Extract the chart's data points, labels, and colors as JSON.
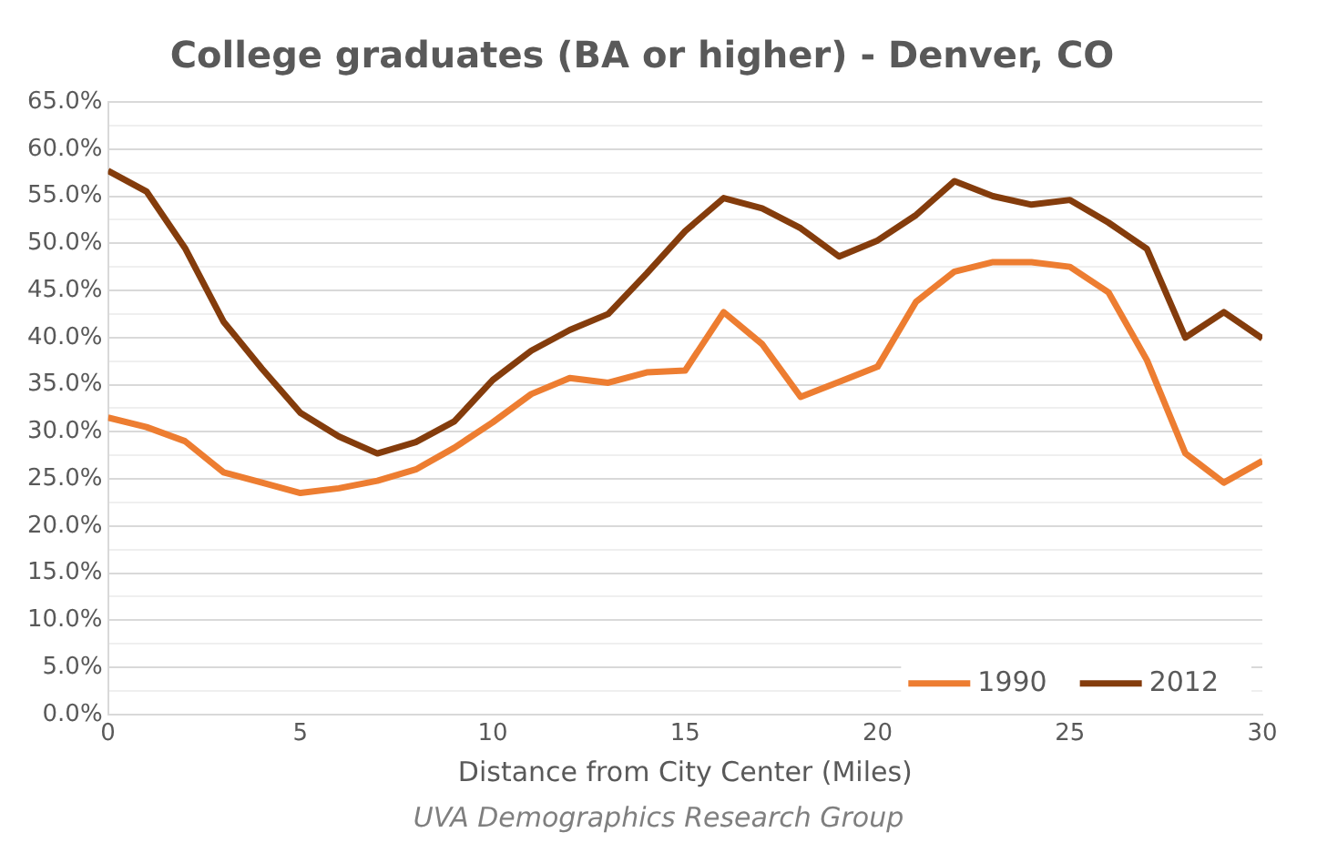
{
  "chart_data": {
    "type": "line",
    "title": "College graduates (BA or higher) - Denver, CO",
    "xlabel": "Distance from City Center (Miles)",
    "annotations": [
      "UVA Demographics Research Group"
    ],
    "x": [
      0,
      1,
      2,
      3,
      4,
      5,
      6,
      7,
      8,
      9,
      10,
      11,
      12,
      13,
      14,
      15,
      16,
      17,
      18,
      19,
      20,
      21,
      22,
      23,
      24,
      25,
      26,
      27,
      28,
      29,
      30
    ],
    "series": [
      {
        "name": "1990",
        "color": "#ed7d31",
        "values": [
          31.5,
          30.5,
          29,
          25.7,
          24.6,
          23.5,
          24,
          24.8,
          26,
          28.3,
          31,
          34,
          35.7,
          35.2,
          36.3,
          36.5,
          42.7,
          39.3,
          33.7,
          35.3,
          36.9,
          43.8,
          47,
          48,
          48,
          47.5,
          44.8,
          37.6,
          27.7,
          24.6,
          26.9
        ]
      },
      {
        "name": "2012",
        "color": "#843c0c",
        "values": [
          57.7,
          55.5,
          49.5,
          41.7,
          36.7,
          32,
          29.5,
          27.7,
          28.9,
          31.1,
          35.5,
          38.6,
          40.8,
          42.5,
          46.8,
          51.3,
          54.8,
          53.7,
          51.6,
          48.6,
          50.3,
          53,
          56.6,
          55,
          54.1,
          54.6,
          52.2,
          49.4,
          40,
          42.7,
          39.9
        ]
      }
    ],
    "xlim": [
      0,
      30
    ],
    "xticks": [
      0,
      5,
      10,
      15,
      20,
      25,
      30
    ],
    "ylim": [
      0,
      65
    ],
    "yticks": [
      {
        "value": 0,
        "label": "0.0%"
      },
      {
        "value": 2.5,
        "label": null
      },
      {
        "value": 5,
        "label": "5.0%"
      },
      {
        "value": 7.5,
        "label": null
      },
      {
        "value": 10,
        "label": "10.0%"
      },
      {
        "value": 12.5,
        "label": null
      },
      {
        "value": 15,
        "label": "15.0%"
      },
      {
        "value": 17.5,
        "label": null
      },
      {
        "value": 20,
        "label": "20.0%"
      },
      {
        "value": 22.5,
        "label": null
      },
      {
        "value": 25,
        "label": "25.0%"
      },
      {
        "value": 27.5,
        "label": null
      },
      {
        "value": 30,
        "label": "30.0%"
      },
      {
        "value": 32.5,
        "label": null
      },
      {
        "value": 35,
        "label": "35.0%"
      },
      {
        "value": 37.5,
        "label": null
      },
      {
        "value": 40,
        "label": "40.0%"
      },
      {
        "value": 42.5,
        "label": null
      },
      {
        "value": 45,
        "label": "45.0%"
      },
      {
        "value": 47.5,
        "label": null
      },
      {
        "value": 50,
        "label": "50.0%"
      },
      {
        "value": 52.5,
        "label": null
      },
      {
        "value": 55,
        "label": "55.0%"
      },
      {
        "value": 57.5,
        "label": null
      },
      {
        "value": 60,
        "label": "60.0%"
      },
      {
        "value": 62.5,
        "label": null
      },
      {
        "value": 65,
        "label": "65.0%"
      }
    ],
    "grid": "y",
    "legend": "bottom right",
    "marker": "none",
    "line_style": "solid"
  }
}
